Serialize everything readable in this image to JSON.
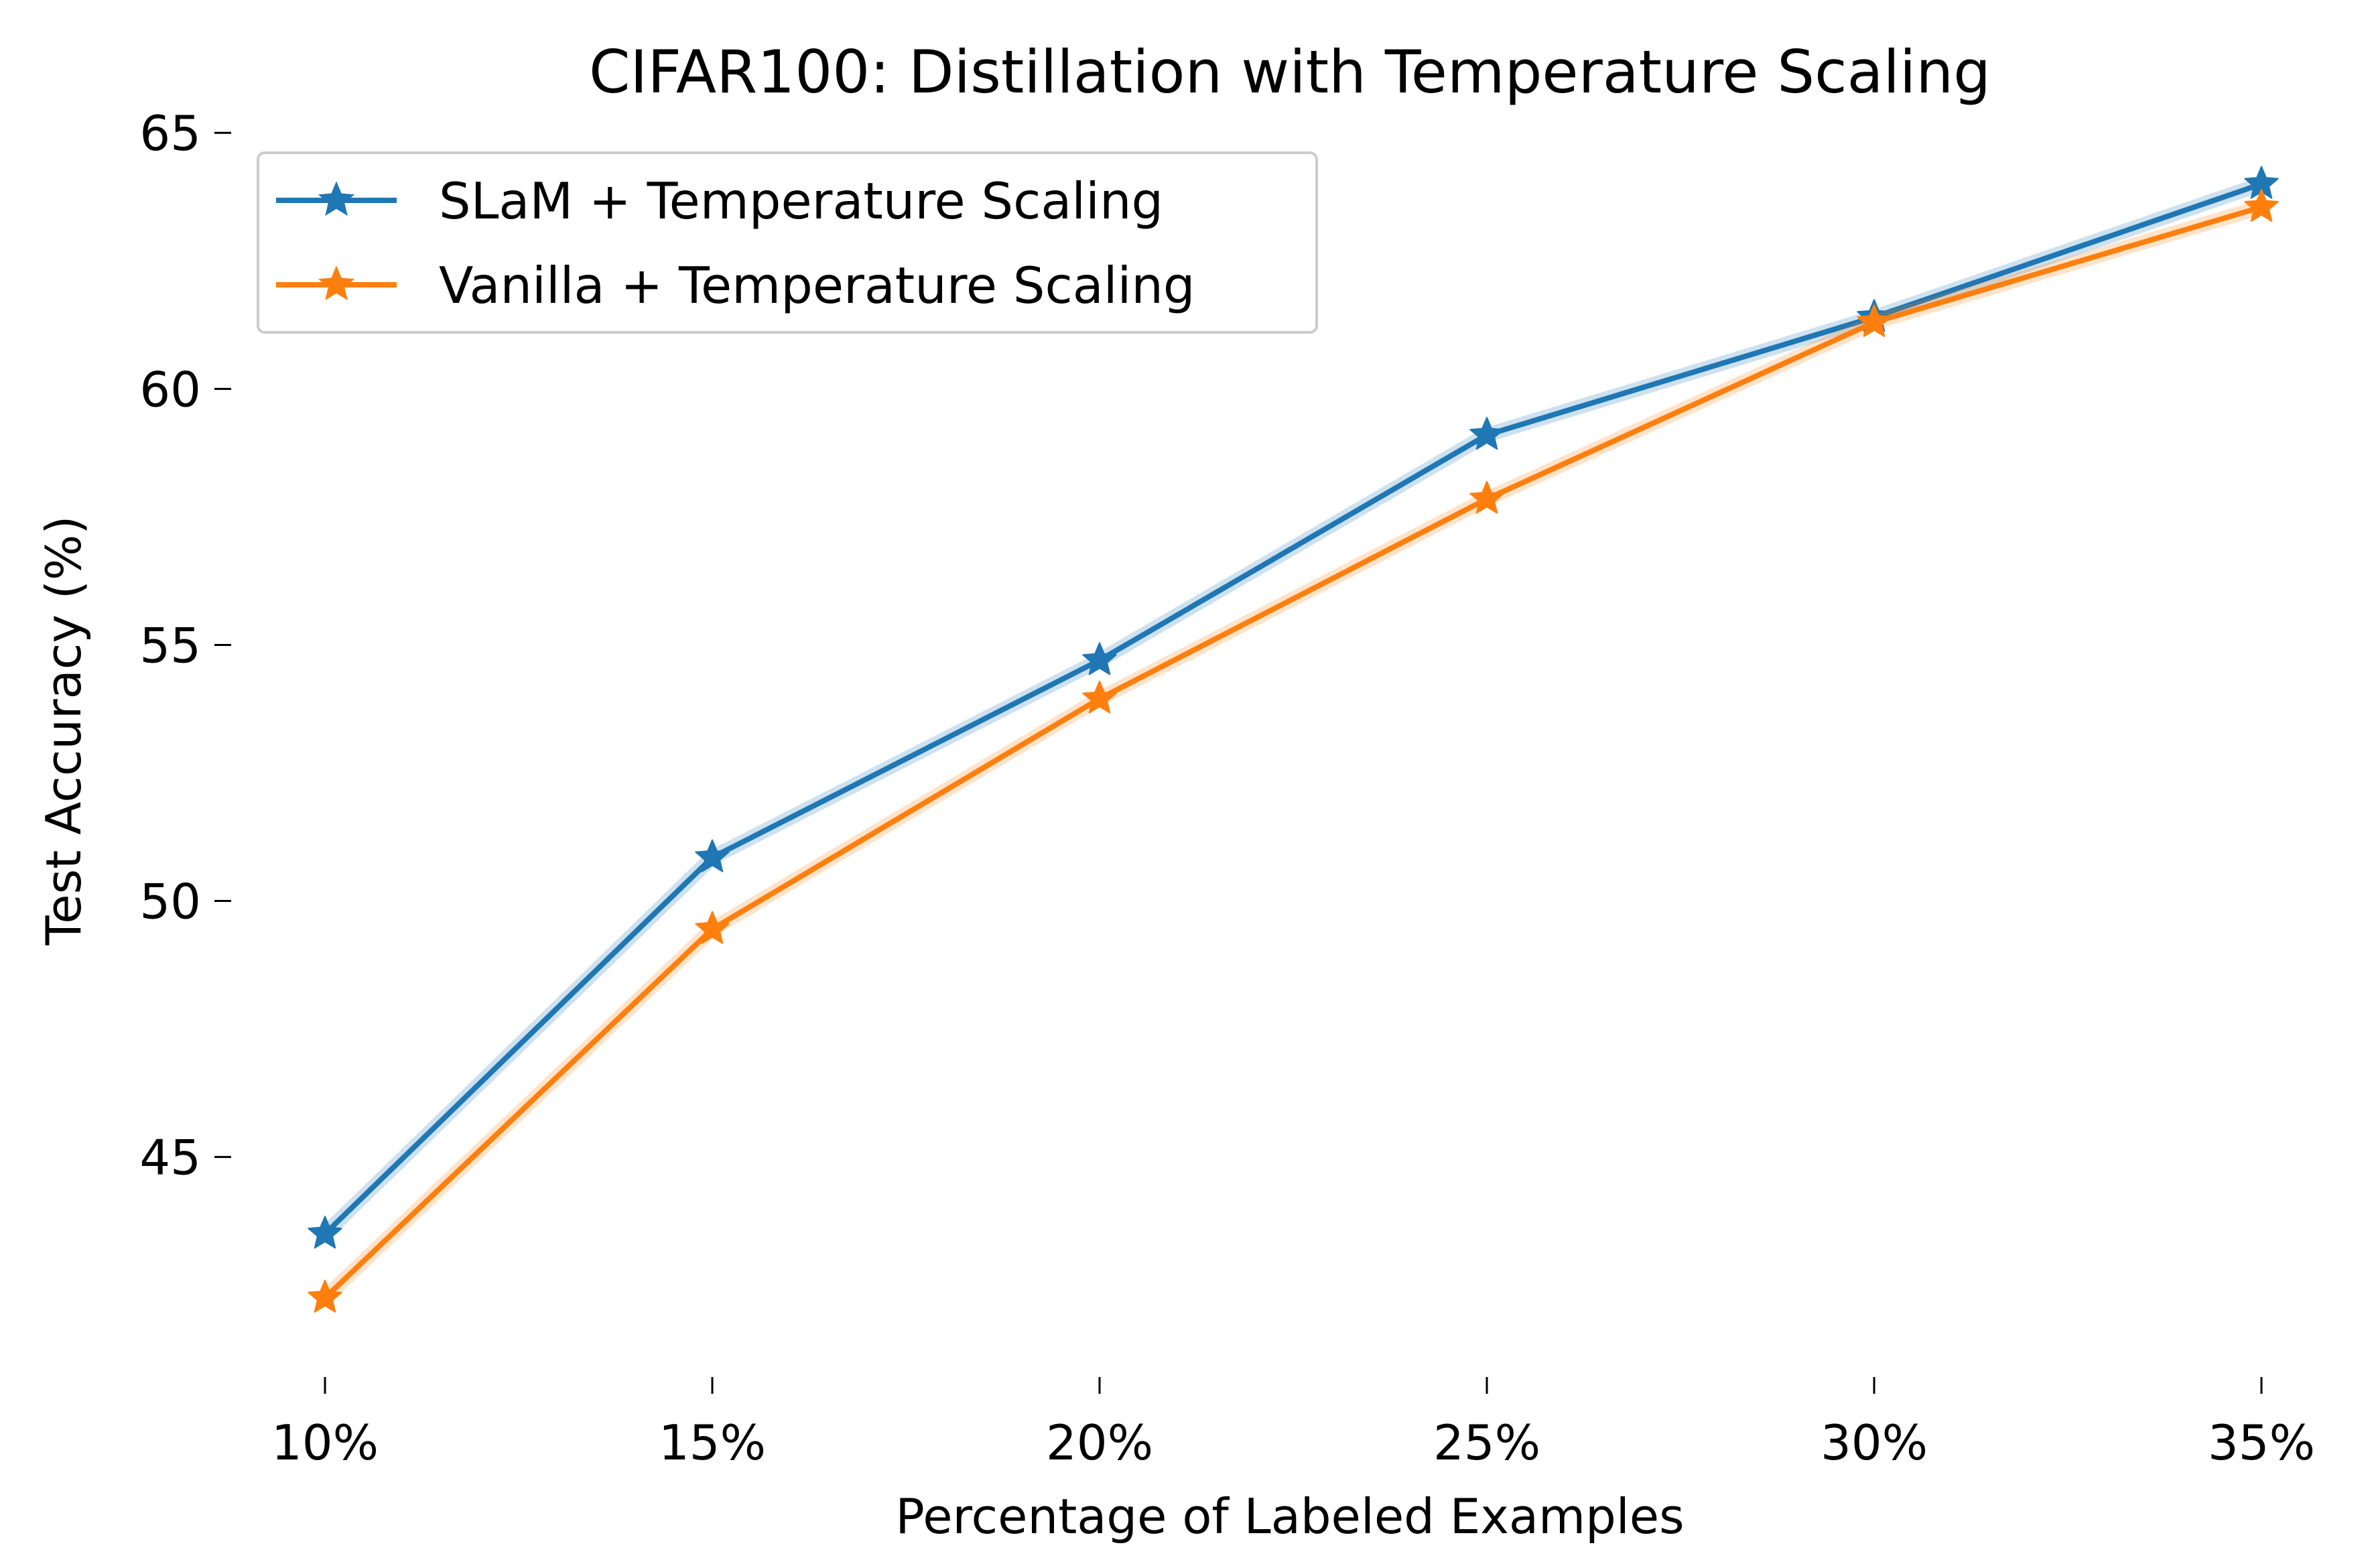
{
  "chart_data": {
    "type": "line",
    "title": "CIFAR100: Distillation with Temperature Scaling",
    "xlabel": "Percentage of Labeled Examples",
    "ylabel": "Test Accuracy (%)",
    "categories": [
      "10%",
      "15%",
      "20%",
      "25%",
      "30%",
      "35%"
    ],
    "yticks": [
      45,
      50,
      55,
      60,
      65
    ],
    "ylim": [
      40.9,
      65.5
    ],
    "grid": false,
    "legend_position": "upper-left",
    "marker": "star",
    "series": [
      {
        "name": "SLaM + Temperature Scaling",
        "color": "#1f77b4",
        "values": [
          43.5,
          50.85,
          54.7,
          59.1,
          61.4,
          64.0
        ]
      },
      {
        "name": "Vanilla + Temperature Scaling",
        "color": "#ff7f0e",
        "values": [
          42.25,
          49.45,
          53.95,
          57.85,
          61.3,
          63.55
        ]
      }
    ]
  }
}
